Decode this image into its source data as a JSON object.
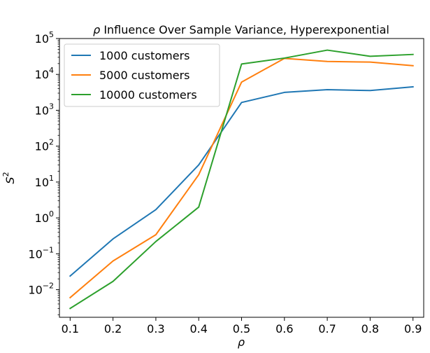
{
  "chart_data": {
    "type": "line",
    "title_symbol": "ρ",
    "title_rest": "Influence Over Sample Variance, Hyperexponential",
    "xlabel": "ρ",
    "ylabel": "S",
    "ylabel_sup": "2",
    "x": [
      0.1,
      0.2,
      0.3,
      0.4,
      0.5,
      0.6,
      0.7,
      0.8,
      0.9
    ],
    "x_tick_labels": [
      "0.1",
      "0.2",
      "0.3",
      "0.4",
      "0.5",
      "0.6",
      "0.7",
      "0.8",
      "0.9"
    ],
    "xlim": [
      0.075,
      0.925
    ],
    "y_scale": "log",
    "ylim": [
      0.0017,
      100000
    ],
    "y_ticks": [
      {
        "value": 0.01,
        "base": "10",
        "exp": "−2"
      },
      {
        "value": 0.1,
        "base": "10",
        "exp": "−1"
      },
      {
        "value": 1,
        "base": "10",
        "exp": "0"
      },
      {
        "value": 10,
        "base": "10",
        "exp": "1"
      },
      {
        "value": 100,
        "base": "10",
        "exp": "2"
      },
      {
        "value": 1000,
        "base": "10",
        "exp": "3"
      },
      {
        "value": 10000,
        "base": "10",
        "exp": "4"
      },
      {
        "value": 100000,
        "base": "10",
        "exp": "5"
      }
    ],
    "legend_position": "upper-left",
    "series": [
      {
        "name": "1000 customers",
        "color": "#1f77b4",
        "values": [
          0.024,
          0.26,
          1.7,
          30,
          1650,
          3150,
          3750,
          3550,
          4500
        ]
      },
      {
        "name": "5000 customers",
        "color": "#ff7f0e",
        "values": [
          0.006,
          0.063,
          0.34,
          16,
          6100,
          28000,
          23000,
          22000,
          17500
        ]
      },
      {
        "name": "10000 customers",
        "color": "#2ca02c",
        "values": [
          0.003,
          0.017,
          0.22,
          2.0,
          19500,
          28500,
          47500,
          32000,
          36000
        ]
      }
    ]
  }
}
